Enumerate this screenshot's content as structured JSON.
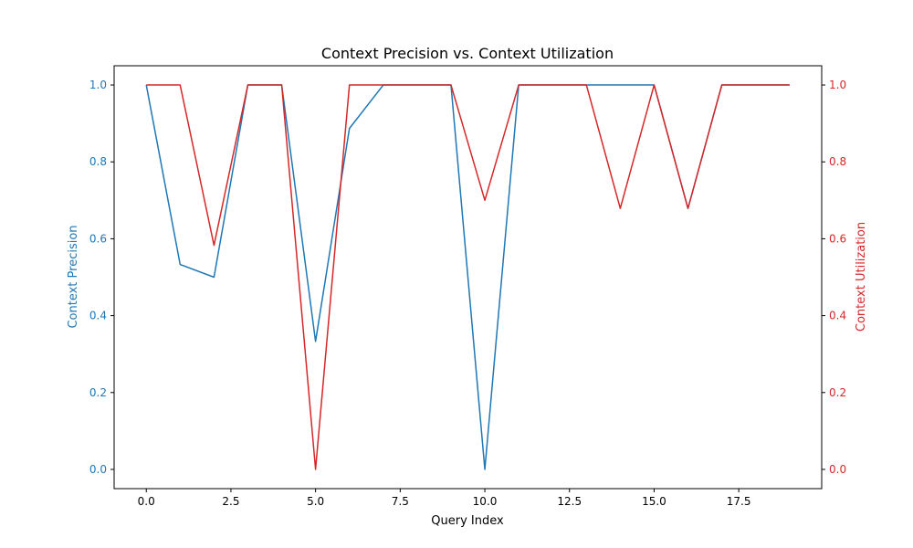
{
  "chart_data": {
    "type": "line",
    "title": "Context Precision vs. Context Utilization",
    "xlabel": "Query Index",
    "ylabel_left": "Context Precision",
    "ylabel_right": "Context Utilization",
    "xlim": [
      -0.95,
      19.95
    ],
    "ylim_left": [
      -0.05,
      1.05
    ],
    "ylim_right": [
      -0.05,
      1.05
    ],
    "x_ticks": [
      0.0,
      2.5,
      5.0,
      7.5,
      10.0,
      12.5,
      15.0,
      17.5
    ],
    "x_tick_labels": [
      "0.0",
      "2.5",
      "5.0",
      "7.5",
      "10.0",
      "12.5",
      "15.0",
      "17.5"
    ],
    "y_ticks": [
      0.0,
      0.2,
      0.4,
      0.6,
      0.8,
      1.0
    ],
    "y_tick_labels": [
      "0.0",
      "0.2",
      "0.4",
      "0.6",
      "0.8",
      "1.0"
    ],
    "grid": false,
    "x": [
      0,
      1,
      2,
      3,
      4,
      5,
      6,
      7,
      8,
      9,
      10,
      11,
      12,
      13,
      14,
      15,
      16,
      17,
      18,
      19
    ],
    "series": [
      {
        "axis": "left",
        "color": "#1f77b4",
        "values": [
          1.0,
          0.533,
          0.5,
          1.0,
          1.0,
          0.333,
          0.887,
          1.0,
          1.0,
          1.0,
          0.0,
          1.0,
          1.0,
          1.0,
          1.0,
          1.0,
          0.679,
          1.0,
          1.0,
          1.0
        ]
      },
      {
        "axis": "right",
        "color": "#d62728",
        "values": [
          1.0,
          1.0,
          0.583,
          1.0,
          1.0,
          0.0,
          1.0,
          1.0,
          1.0,
          1.0,
          0.7,
          1.0,
          1.0,
          1.0,
          0.679,
          1.0,
          0.679,
          1.0,
          1.0,
          1.0
        ]
      }
    ]
  }
}
